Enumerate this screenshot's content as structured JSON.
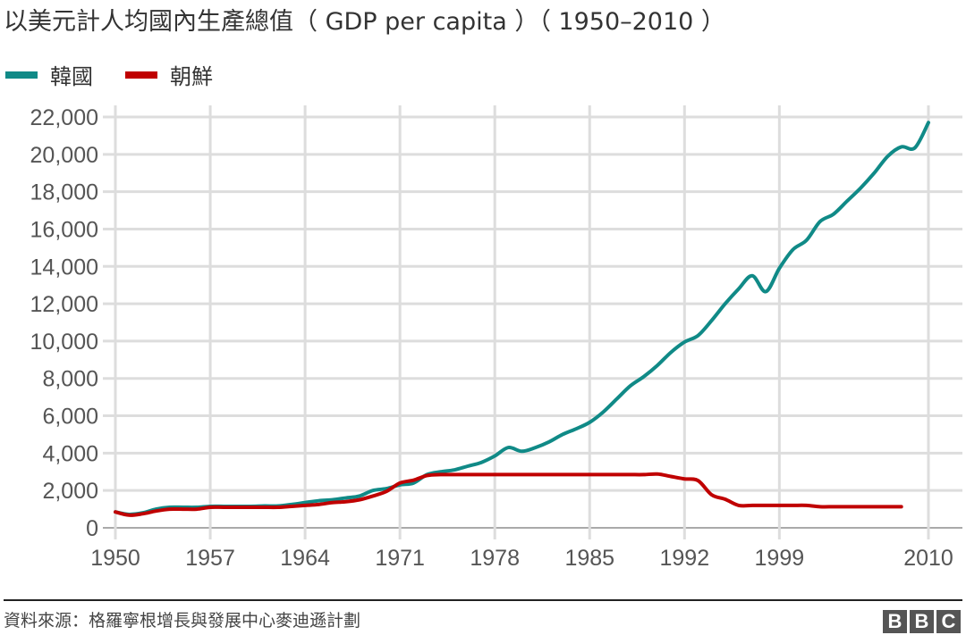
{
  "chart_data": {
    "type": "line",
    "title": "以美元計人均國內生產總值（ GDP per capita ）（ 1950–2010 ）",
    "xlabel": "",
    "ylabel": "",
    "xlim": [
      1950,
      2010
    ],
    "ylim": [
      0,
      22000
    ],
    "x_ticks": [
      1950,
      1957,
      1964,
      1971,
      1978,
      1985,
      1992,
      1999,
      2010
    ],
    "x_tick_labels": [
      "1950",
      "1957",
      "1964",
      "1971",
      "1978",
      "1985",
      "1992",
      "1999",
      "2010"
    ],
    "y_ticks": [
      0,
      2000,
      4000,
      6000,
      8000,
      10000,
      12000,
      14000,
      16000,
      18000,
      20000,
      22000
    ],
    "y_tick_labels": [
      "0",
      "2,000",
      "4,000",
      "6,000",
      "8,000",
      "10,000",
      "12,000",
      "14,000",
      "16,000",
      "18,000",
      "20,000",
      "22,000"
    ],
    "grid": true,
    "legend_position": "top-left",
    "series": [
      {
        "name": "韓國",
        "color": "#108a87",
        "x": [
          1950,
          1951,
          1952,
          1953,
          1954,
          1955,
          1956,
          1957,
          1958,
          1959,
          1960,
          1961,
          1962,
          1963,
          1964,
          1965,
          1966,
          1967,
          1968,
          1969,
          1970,
          1971,
          1972,
          1973,
          1974,
          1975,
          1976,
          1977,
          1978,
          1979,
          1980,
          1981,
          1982,
          1983,
          1984,
          1985,
          1986,
          1987,
          1988,
          1989,
          1990,
          1991,
          1992,
          1993,
          1994,
          1995,
          1996,
          1997,
          1998,
          1999,
          2000,
          2001,
          2002,
          2003,
          2004,
          2005,
          2006,
          2007,
          2008,
          2009,
          2010
        ],
        "values": [
          850,
          720,
          800,
          1000,
          1100,
          1100,
          1100,
          1150,
          1150,
          1150,
          1150,
          1170,
          1170,
          1250,
          1350,
          1450,
          1500,
          1600,
          1700,
          2000,
          2100,
          2300,
          2400,
          2850,
          3000,
          3100,
          3300,
          3500,
          3850,
          4300,
          4100,
          4300,
          4600,
          5000,
          5300,
          5650,
          6200,
          6900,
          7600,
          8100,
          8700,
          9400,
          9950,
          10300,
          11100,
          12000,
          12800,
          13500,
          12650,
          13900,
          14900,
          15400,
          16400,
          16800,
          17500,
          18200,
          19000,
          19900,
          20400,
          20350,
          21700
        ]
      },
      {
        "name": "朝鮮",
        "color": "#c00000",
        "x": [
          1950,
          1951,
          1952,
          1953,
          1954,
          1955,
          1956,
          1957,
          1958,
          1959,
          1960,
          1961,
          1962,
          1963,
          1964,
          1965,
          1966,
          1967,
          1968,
          1969,
          1970,
          1971,
          1972,
          1973,
          1974,
          1975,
          1976,
          1977,
          1978,
          1979,
          1980,
          1981,
          1982,
          1983,
          1984,
          1985,
          1986,
          1987,
          1988,
          1989,
          1990,
          1991,
          1992,
          1993,
          1994,
          1995,
          1996,
          1997,
          1998,
          1999,
          2000,
          2001,
          2002,
          2003,
          2004,
          2005,
          2006,
          2007,
          2008
        ],
        "values": [
          850,
          680,
          750,
          900,
          1000,
          1000,
          1000,
          1100,
          1100,
          1100,
          1100,
          1100,
          1100,
          1150,
          1200,
          1250,
          1350,
          1400,
          1500,
          1700,
          1950,
          2400,
          2550,
          2800,
          2850,
          2850,
          2850,
          2850,
          2850,
          2850,
          2850,
          2850,
          2850,
          2850,
          2850,
          2850,
          2850,
          2850,
          2850,
          2850,
          2880,
          2750,
          2620,
          2530,
          1770,
          1530,
          1200,
          1200,
          1200,
          1200,
          1200,
          1200,
          1130,
          1130,
          1130,
          1130,
          1130,
          1130,
          1130
        ]
      }
    ]
  },
  "legend": {
    "items": [
      "韓國",
      "朝鮮"
    ]
  },
  "footer": {
    "source": "資料來源：格羅寧根增長與發展中心麥迪遜計劃",
    "logo": [
      "B",
      "B",
      "C"
    ]
  }
}
